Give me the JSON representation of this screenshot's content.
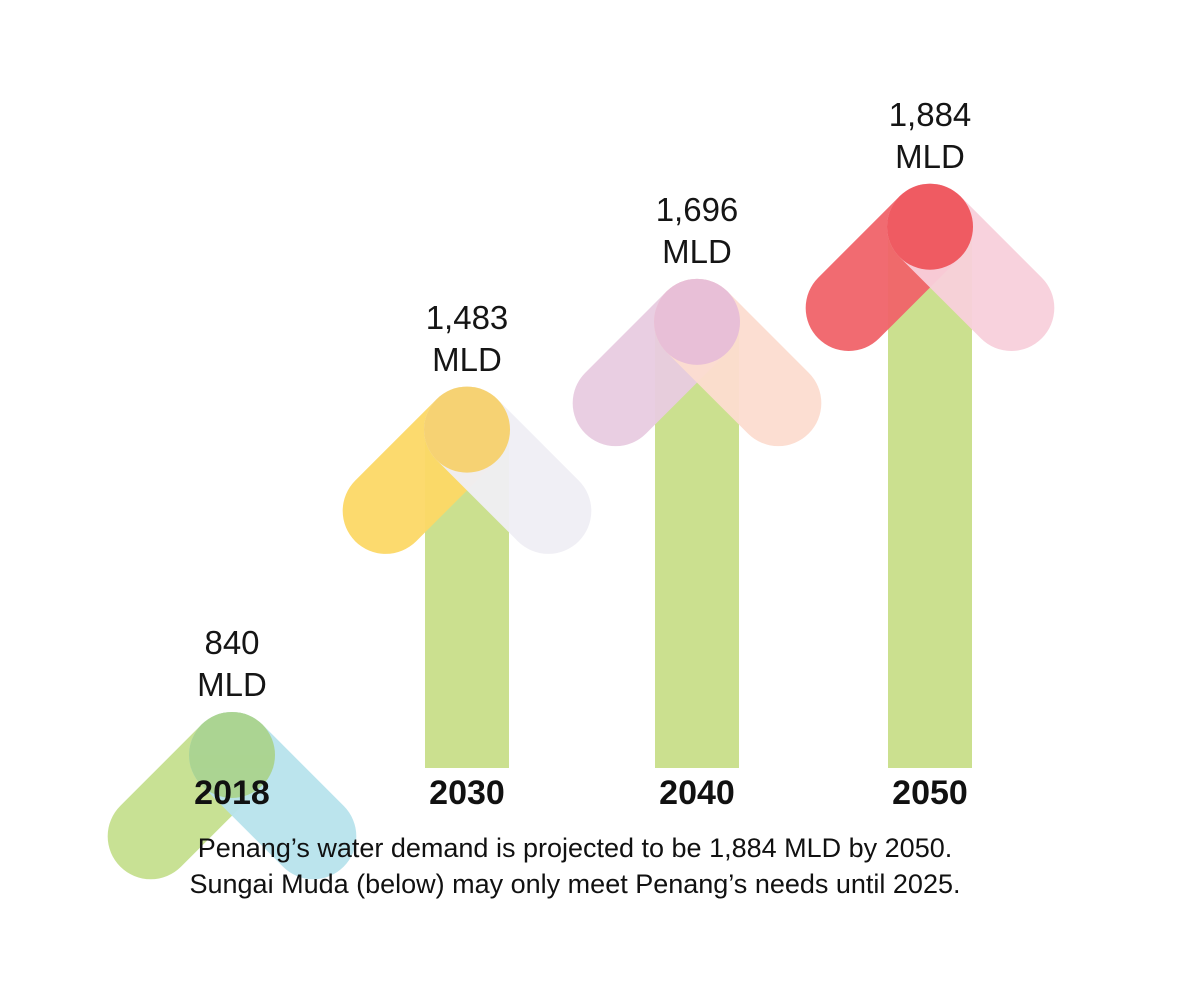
{
  "chart_data": {
    "type": "bar",
    "categories": [
      "2018",
      "2030",
      "2040",
      "2050"
    ],
    "values": [
      840,
      1483,
      1696,
      1884
    ],
    "unit": "MLD",
    "value_labels": [
      "840",
      "1,483",
      "1,696",
      "1,884"
    ],
    "series_colors": [
      {
        "bar": "#cbe08f",
        "left_arm": "#c5df8e",
        "right_arm": "#b7e3ec",
        "overlap": "#a9d38a"
      },
      {
        "bar": "#cbe08f",
        "left_arm": "#fcd866",
        "right_arm": "#efeef4",
        "overlap": "#f6cf68"
      },
      {
        "bar": "#cbe08f",
        "left_arm": "#e8cbe0",
        "right_arm": "#fcdcd0",
        "overlap": "#e6bcd7"
      },
      {
        "bar": "#cbe08f",
        "left_arm": "#f06369",
        "right_arm": "#f8d0db",
        "overlap": "#ee5158"
      }
    ]
  },
  "caption": {
    "line1": "Penang’s water demand is projected to be 1,884 MLD by 2050.",
    "line2": "Sungai Muda (below) may only meet Penang’s needs until 2025."
  }
}
